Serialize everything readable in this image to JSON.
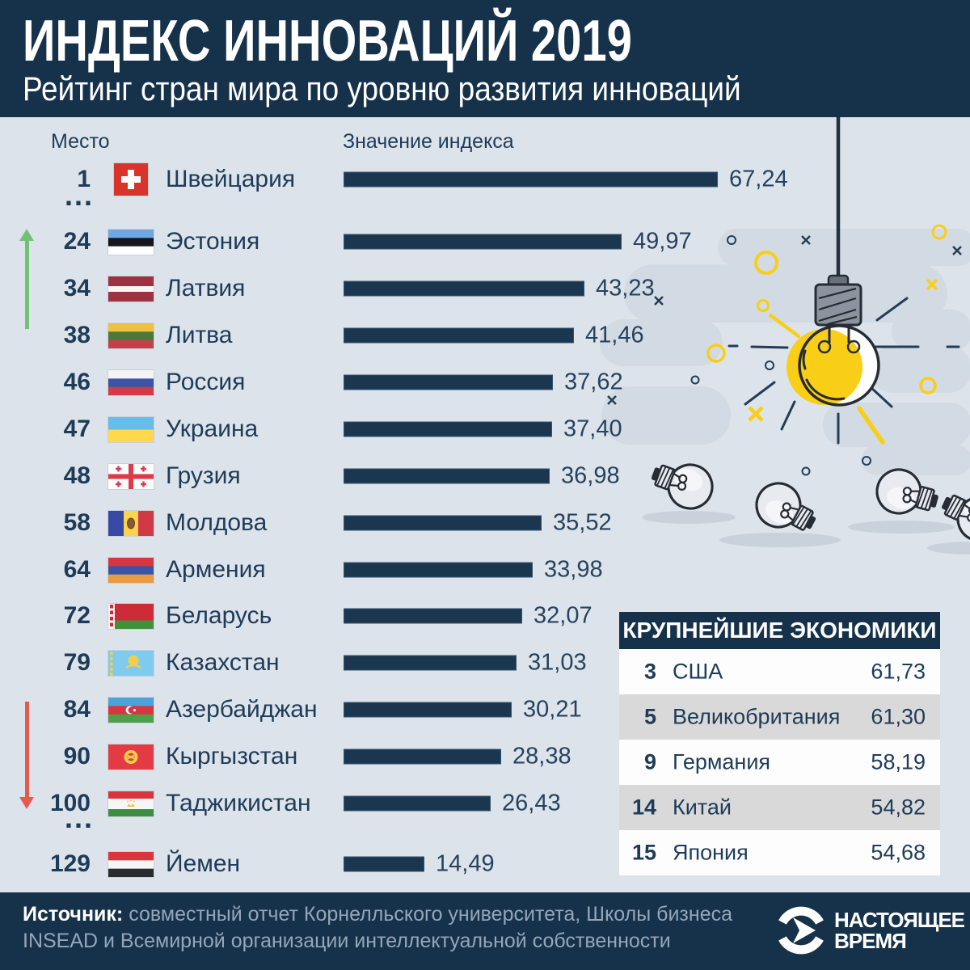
{
  "header": {
    "title": "ИНДЕКС ИННОВАЦИЙ 2019",
    "subtitle": "Рейтинг стран мира по уровню развития инноваций"
  },
  "columns": {
    "rank_label": "Место",
    "value_label": "Значение индекса"
  },
  "misc": {
    "ellipsis": "..."
  },
  "chart_data": {
    "type": "bar",
    "title": "ИНДЕКС ИННОВАЦИЙ 2019",
    "subtitle": "Рейтинг стран мира по уровню развития инноваций",
    "orientation": "horizontal",
    "xlim": [
      0,
      67.24
    ],
    "max_value": 67.24,
    "rows": [
      {
        "rank": "1",
        "country": "Швейцария",
        "flag": "switzerland",
        "value": 67.24,
        "value_label": "67,24",
        "ellipsis_after": true
      },
      {
        "rank": "24",
        "country": "Эстония",
        "flag": "estonia",
        "value": 49.97,
        "value_label": "49,97"
      },
      {
        "rank": "34",
        "country": "Латвия",
        "flag": "latvia",
        "value": 43.23,
        "value_label": "43,23"
      },
      {
        "rank": "38",
        "country": "Литва",
        "flag": "lithuania",
        "value": 41.46,
        "value_label": "41,46"
      },
      {
        "rank": "46",
        "country": "Россия",
        "flag": "russia",
        "value": 37.62,
        "value_label": "37,62"
      },
      {
        "rank": "47",
        "country": "Украина",
        "flag": "ukraine",
        "value": 37.4,
        "value_label": "37,40"
      },
      {
        "rank": "48",
        "country": "Грузия",
        "flag": "georgia",
        "value": 36.98,
        "value_label": "36,98"
      },
      {
        "rank": "58",
        "country": "Молдова",
        "flag": "moldova",
        "value": 35.52,
        "value_label": "35,52"
      },
      {
        "rank": "64",
        "country": "Армения",
        "flag": "armenia",
        "value": 33.98,
        "value_label": "33,98"
      },
      {
        "rank": "72",
        "country": "Беларусь",
        "flag": "belarus",
        "value": 32.07,
        "value_label": "32,07"
      },
      {
        "rank": "79",
        "country": "Казахстан",
        "flag": "kazakhstan",
        "value": 31.03,
        "value_label": "31,03"
      },
      {
        "rank": "84",
        "country": "Азербайджан",
        "flag": "azerbaijan",
        "value": 30.21,
        "value_label": "30,21"
      },
      {
        "rank": "90",
        "country": "Кыргызстан",
        "flag": "kyrgyzstan",
        "value": 28.38,
        "value_label": "28,38"
      },
      {
        "rank": "100",
        "country": "Таджикистан",
        "flag": "tajikistan",
        "value": 26.43,
        "value_label": "26,43",
        "ellipsis_after": true
      },
      {
        "rank": "129",
        "country": "Йемен",
        "flag": "yemen",
        "value": 14.49,
        "value_label": "14,49"
      }
    ]
  },
  "top_economies": {
    "title": "КРУПНЕЙШИЕ ЭКОНОМИКИ",
    "rows": [
      {
        "rank": "3",
        "country": "США",
        "value_label": "61,73"
      },
      {
        "rank": "5",
        "country": "Великобритания",
        "value_label": "61,30"
      },
      {
        "rank": "9",
        "country": "Германия",
        "value_label": "58,19"
      },
      {
        "rank": "14",
        "country": "Китай",
        "value_label": "54,82"
      },
      {
        "rank": "15",
        "country": "Япония",
        "value_label": "54,68"
      }
    ]
  },
  "footer": {
    "source_label": "Источник:",
    "source_line1": " совместный отчет Корнелльского университета, Школы бизнеса",
    "source_line2": "INSEAD и Всемирной организации интеллектуальной собственности",
    "logo_line1": "НАСТОЯЩЕЕ",
    "logo_line2": "ВРЕМЯ"
  },
  "colors": {
    "navy": "#16324b",
    "background": "#dce3ea",
    "bar": "#1b364f",
    "accent_yellow": "#f9ce17",
    "up_green": "#72c276",
    "down_red": "#e7594f",
    "table_alt_gray": "#d9d9d9"
  }
}
